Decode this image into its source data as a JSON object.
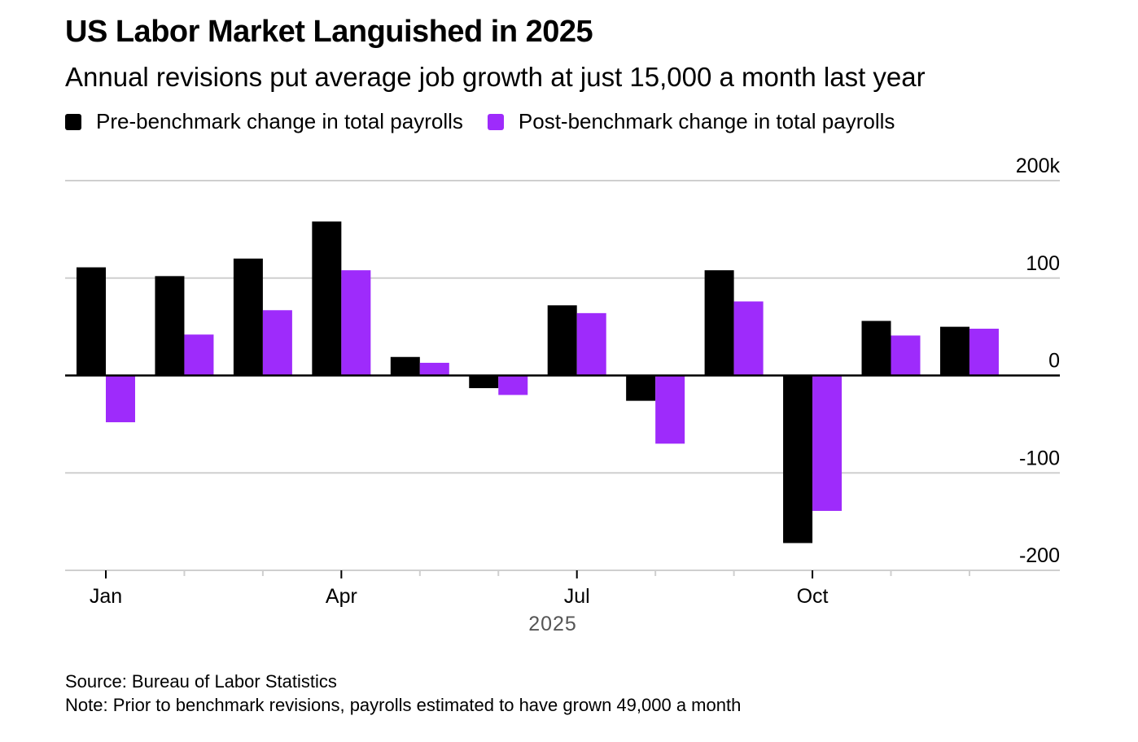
{
  "header": {
    "title": "US Labor Market Languished in 2025",
    "subtitle": "Annual revisions put average job growth at just 15,000 a month last year"
  },
  "legend": [
    {
      "label": "Pre-benchmark change in total payrolls",
      "color": "#000000"
    },
    {
      "label": "Post-benchmark change in total payrolls",
      "color": "#9e2bfb"
    }
  ],
  "footer": {
    "source": "Source: Bureau of Labor Statistics",
    "note": "Note: Prior to benchmark revisions, payrolls estimated to have grown 49,000 a month"
  },
  "chart_data": {
    "type": "bar",
    "title": "US Labor Market Languished in 2025",
    "subtitle": "Annual revisions put average job growth at just 15,000 a month last year",
    "xlabel": "2025",
    "ylabel": "",
    "units": "thousands of jobs",
    "categories": [
      "Jan",
      "Feb",
      "Mar",
      "Apr",
      "May",
      "Jun",
      "Jul",
      "Aug",
      "Sep",
      "Oct",
      "Nov",
      "Dec"
    ],
    "x_tick_labels": [
      {
        "category": "Jan",
        "label": "Jan"
      },
      {
        "category": "Apr",
        "label": "Apr"
      },
      {
        "category": "Jul",
        "label": "Jul"
      },
      {
        "category": "Oct",
        "label": "Oct"
      }
    ],
    "series": [
      {
        "name": "Pre-benchmark change in total payrolls",
        "color": "#000000",
        "values": [
          111,
          102,
          120,
          158,
          19,
          -13,
          72,
          -26,
          108,
          -172,
          56,
          50
        ]
      },
      {
        "name": "Post-benchmark change in total payrolls",
        "color": "#9e2bfb",
        "values": [
          -48,
          42,
          67,
          108,
          13,
          -20,
          64,
          -70,
          76,
          -139,
          41,
          48
        ]
      }
    ],
    "ylim": [
      -200,
      200
    ],
    "y_ticks": [
      {
        "value": 200,
        "label": "200k"
      },
      {
        "value": 100,
        "label": "100"
      },
      {
        "value": 0,
        "label": "0"
      },
      {
        "value": -100,
        "label": "-100"
      },
      {
        "value": -200,
        "label": "-200"
      }
    ],
    "y_axis_side": "right",
    "grid": true,
    "legend_position": "top-left"
  }
}
